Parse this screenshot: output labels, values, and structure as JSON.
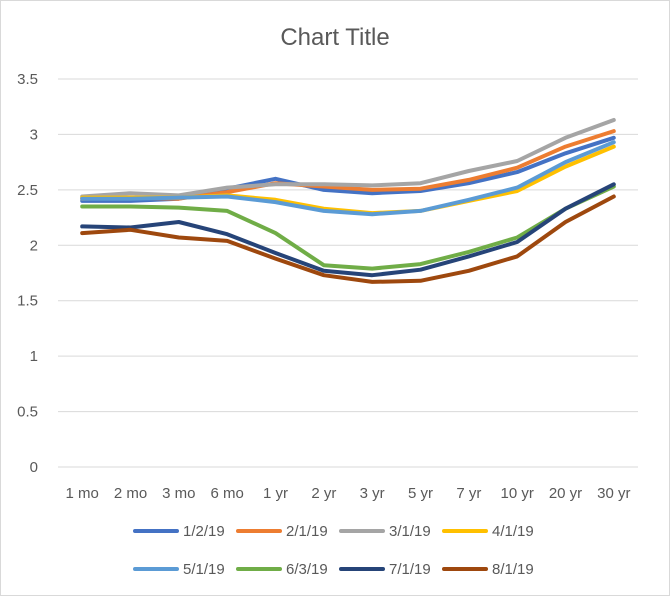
{
  "chart_data": {
    "type": "line",
    "title": "Chart Title",
    "xlabel": "",
    "ylabel": "",
    "categories": [
      "1 mo",
      "2 mo",
      "3 mo",
      "6 mo",
      "1 yr",
      "2 yr",
      "3 yr",
      "5 yr",
      "7 yr",
      "10 yr",
      "20 yr",
      "30 yr"
    ],
    "ylim": [
      0,
      3.5
    ],
    "yticks": [
      "0",
      "0.5",
      "1",
      "1.5",
      "2",
      "2.5",
      "3",
      "3.5"
    ],
    "grid": true,
    "legend_position": "bottom",
    "series": [
      {
        "name": "1/2/19",
        "color": "#4472c4",
        "values": [
          2.4,
          2.4,
          2.42,
          2.51,
          2.6,
          2.5,
          2.47,
          2.49,
          2.56,
          2.66,
          2.83,
          2.97
        ]
      },
      {
        "name": "2/1/19",
        "color": "#ed7d31",
        "values": [
          2.42,
          2.43,
          2.42,
          2.48,
          2.56,
          2.53,
          2.5,
          2.51,
          2.59,
          2.7,
          2.89,
          3.03
        ]
      },
      {
        "name": "3/1/19",
        "color": "#a5a5a5",
        "values": [
          2.44,
          2.47,
          2.45,
          2.52,
          2.55,
          2.55,
          2.54,
          2.56,
          2.67,
          2.76,
          2.97,
          3.13
        ]
      },
      {
        "name": "4/1/19",
        "color": "#ffc000",
        "values": [
          2.43,
          2.43,
          2.43,
          2.45,
          2.41,
          2.33,
          2.29,
          2.31,
          2.4,
          2.49,
          2.71,
          2.89
        ]
      },
      {
        "name": "5/1/19",
        "color": "#5b9bd5",
        "values": [
          2.42,
          2.42,
          2.43,
          2.44,
          2.39,
          2.31,
          2.28,
          2.31,
          2.41,
          2.52,
          2.75,
          2.93
        ]
      },
      {
        "name": "6/3/19",
        "color": "#70ad47",
        "values": [
          2.35,
          2.35,
          2.34,
          2.31,
          2.11,
          1.82,
          1.79,
          1.83,
          1.94,
          2.07,
          2.33,
          2.53
        ]
      },
      {
        "name": "7/1/19",
        "color": "#264478",
        "values": [
          2.17,
          2.16,
          2.21,
          2.1,
          1.93,
          1.77,
          1.73,
          1.78,
          1.9,
          2.03,
          2.33,
          2.55
        ]
      },
      {
        "name": "8/1/19",
        "color": "#9e480e",
        "values": [
          2.11,
          2.14,
          2.07,
          2.04,
          1.88,
          1.73,
          1.67,
          1.68,
          1.77,
          1.9,
          2.21,
          2.44
        ]
      }
    ]
  }
}
